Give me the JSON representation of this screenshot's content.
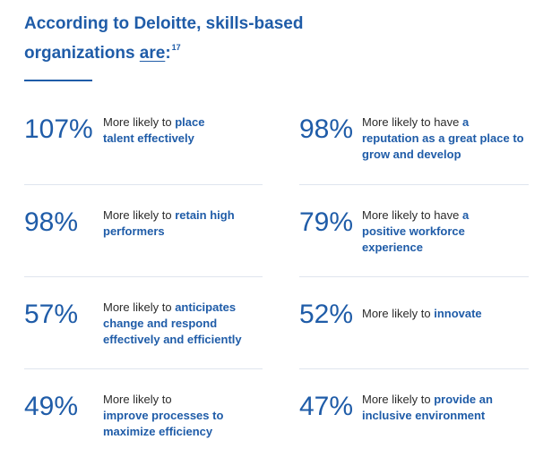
{
  "header": {
    "title_line1": "According to Deloitte, skills-based",
    "title_line2_pre": "organizations ",
    "title_line2_ul": "are",
    "title_line2_post": ":",
    "footnote": "17"
  },
  "stats": [
    {
      "percent": "107%",
      "text": "More likely to ",
      "highlight": "place talent effectively"
    },
    {
      "percent": "98%",
      "text": "More likely to have ",
      "highlight": "a reputation as a great place to grow and develop"
    },
    {
      "percent": "98%",
      "text": "More likely to ",
      "highlight": "retain high performers"
    },
    {
      "percent": "79%",
      "text": "More likely to have ",
      "highlight": "a positive workforce experience"
    },
    {
      "percent": "57%",
      "text": "More likely to ",
      "highlight": "anticipates change and respond effectively and efficiently"
    },
    {
      "percent": "52%",
      "text": "More likely to ",
      "highlight": "innovate"
    },
    {
      "percent": "49%",
      "text": "More likely to ",
      "highlight": "improve processes to maximize efficiency"
    },
    {
      "percent": "47%",
      "text": "More likely to ",
      "highlight": "provide an inclusive environment"
    }
  ],
  "colors": {
    "accent": "#1f5ca8",
    "body_text": "#2b2b2b",
    "divider": "#dfe5ee"
  }
}
